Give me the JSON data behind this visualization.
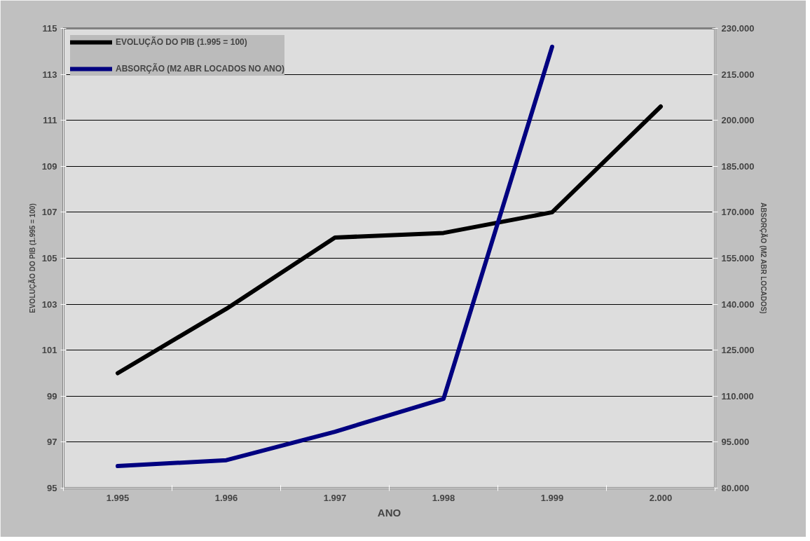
{
  "chart_data": {
    "type": "line",
    "xlabel": "ANO",
    "ylabel": "EVOLUÇÃO DO PIB (1.995 = 100)",
    "y2label": "ABSORÇÃO (M2 ABR LOCADOS)",
    "categories": [
      "1.995",
      "1.996",
      "1.997",
      "1.998",
      "1.999",
      "2.000"
    ],
    "series": [
      {
        "name": "EVOLUÇÃO DO PIB (1.995 = 100)",
        "color": "#000000",
        "values": [
          100,
          102.8,
          105.9,
          106.1,
          107.0,
          111.6
        ]
      },
      {
        "name": "ABSORÇÃO (M2 ABR LOCADOS NO ANO)",
        "color": "#000080",
        "axis": "y2",
        "values": [
          87200,
          89100,
          98400,
          109100,
          224000,
          null
        ]
      }
    ],
    "ylim": [
      95,
      115
    ],
    "yticks": [
      95,
      97,
      99,
      101,
      103,
      105,
      107,
      109,
      111,
      113,
      115
    ],
    "y2lim": [
      80000,
      230000
    ],
    "y2ticks": [
      {
        "value": 80000,
        "label": "80.000"
      },
      {
        "value": 95000,
        "label": "95.000"
      },
      {
        "value": 110000,
        "label": "110.000"
      },
      {
        "value": 125000,
        "label": "125.000"
      },
      {
        "value": 140000,
        "label": "140.000"
      },
      {
        "value": 155000,
        "label": "155.000"
      },
      {
        "value": 170000,
        "label": "170.000"
      },
      {
        "value": 185000,
        "label": "185.000"
      },
      {
        "value": 200000,
        "label": "200.000"
      },
      {
        "value": 215000,
        "label": "215.000"
      },
      {
        "value": 230000,
        "label": "230.000"
      }
    ],
    "grid": "y",
    "legend": "top left"
  }
}
